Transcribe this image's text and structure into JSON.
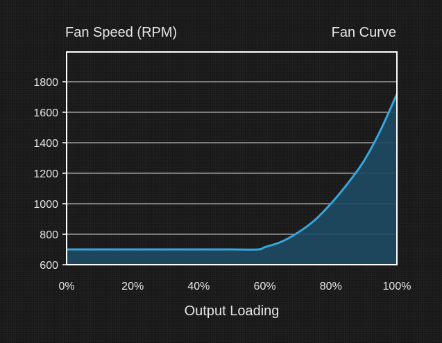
{
  "chart_data": {
    "type": "area",
    "title": "Fan Curve",
    "ylabel": "Fan Speed (RPM)",
    "xlabel": "Output Loading",
    "x_tick_labels": [
      "0%",
      "20%",
      "40%",
      "60%",
      "80%",
      "100%"
    ],
    "y_tick_labels": [
      "600",
      "800",
      "1000",
      "1200",
      "1400",
      "1600",
      "1800"
    ],
    "xlim": [
      0,
      100
    ],
    "ylim": [
      600,
      1800
    ],
    "grid": true,
    "x": [
      0,
      10,
      20,
      30,
      40,
      50,
      58,
      60,
      65,
      70,
      75,
      80,
      85,
      90,
      95,
      100
    ],
    "values": [
      700,
      700,
      700,
      700,
      700,
      700,
      700,
      715,
      750,
      810,
      890,
      1000,
      1130,
      1280,
      1480,
      1720
    ],
    "colors": {
      "line": "#36a6dc",
      "fill": "#1d4a63",
      "grid": "#9a9a9a",
      "axis": "#ffffff",
      "text": "#e6e6e6"
    }
  }
}
